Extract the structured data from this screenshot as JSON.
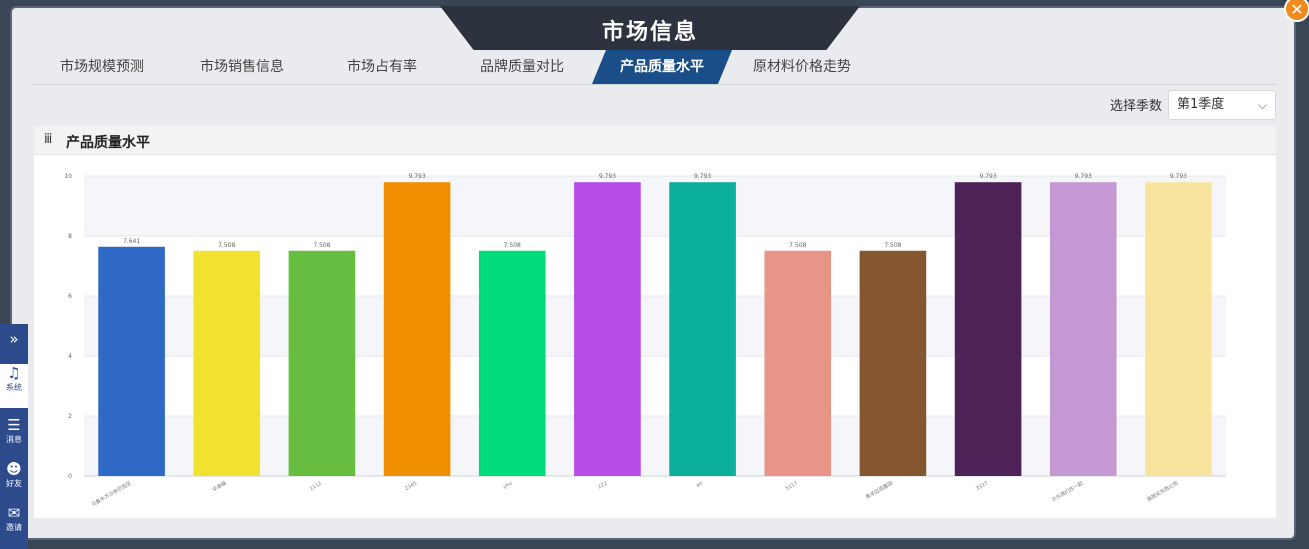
{
  "window": {
    "title": "市场信息"
  },
  "tabs": [
    {
      "label": "市场规模预测"
    },
    {
      "label": "市场销售信息"
    },
    {
      "label": "市场占有率"
    },
    {
      "label": "品牌质量对比"
    },
    {
      "label": "产品质量水平"
    },
    {
      "label": "原材料价格走势"
    }
  ],
  "season": {
    "label": "选择季数",
    "value": "第1季度"
  },
  "panel": {
    "title": "产品质量水平"
  },
  "sidebar": {
    "items": [
      {
        "label": ""
      },
      {
        "label": "系统"
      },
      {
        "label": "消息"
      },
      {
        "label": "好友"
      },
      {
        "label": "邀请"
      }
    ]
  },
  "chart_data": {
    "type": "bar",
    "title": "",
    "xlabel": "",
    "ylabel": "",
    "ylim": [
      0,
      10
    ],
    "yticks": [
      0,
      2,
      4,
      6,
      8,
      10
    ],
    "categories": [
      "乌鲁木齐沙依巴克区",
      "华泰峰",
      "1112",
      "2345",
      "yhu",
      "222",
      "ao",
      "5217",
      "青羊区雨露园",
      "3337",
      "乐乐我们在一起",
      "我想买东西公司"
    ],
    "values": [
      7.641,
      7.508,
      7.508,
      9.793,
      7.508,
      9.793,
      9.793,
      7.508,
      7.508,
      9.793,
      9.793,
      9.793
    ],
    "value_labels": [
      "7.641",
      "7.508",
      "7.508",
      "9.793",
      "7.508",
      "9.793",
      "9.793",
      "7.508",
      "7.508",
      "9.793",
      "9.793",
      "9.793"
    ],
    "colors": [
      "#2f69c6",
      "#f1e22d",
      "#66bd3f",
      "#f09000",
      "#00dc7a",
      "#b64ce3",
      "#0baf9c",
      "#e89486",
      "#845730",
      "#4c2257",
      "#c499d3",
      "#f9e49e"
    ],
    "grid": true,
    "legend": "none"
  }
}
